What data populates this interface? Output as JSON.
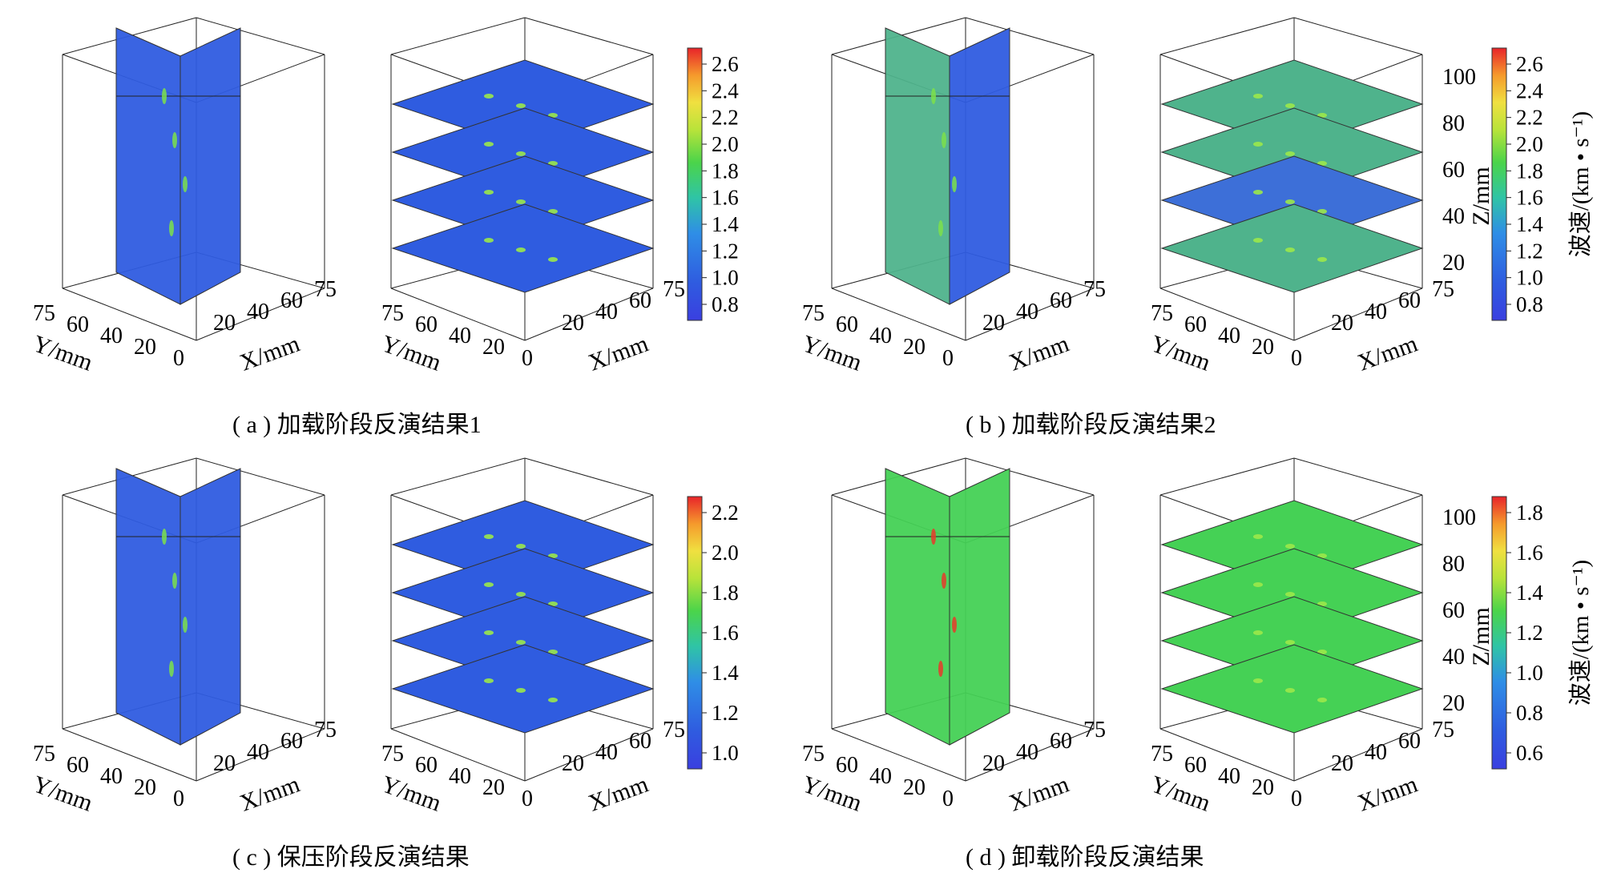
{
  "panels": [
    {
      "caption": "( a ) 加载阶段反演结果1",
      "colorbar": {
        "ticks": [
          "2.6",
          "2.4",
          "2.2",
          "2.0",
          "1.8",
          "1.6",
          "1.4",
          "1.2",
          "1.0",
          "0.8"
        ],
        "label": "",
        "bg": "#2f5ce0"
      },
      "left_axis": {
        "y_ticks": [
          "75",
          "60",
          "40",
          "20",
          "0"
        ],
        "y_label": "Y/mm",
        "x_ticks": [
          "20",
          "40",
          "60",
          "75"
        ],
        "x_label": "X/mm"
      },
      "right_axis": {
        "y_ticks": [
          "75",
          "60",
          "40",
          "20",
          "0"
        ],
        "y_label": "Y/mm",
        "x_ticks": [
          "20",
          "40",
          "60",
          "75"
        ],
        "x_label": "X/mm",
        "z_ticks": [],
        "z_label": ""
      },
      "plane_colors": {
        "slice": "#2f5ce0",
        "layers": [
          "#2f5ce0",
          "#2f5ce0",
          "#2f5ce0",
          "#2f5ce0"
        ]
      }
    },
    {
      "caption": "( b ) 加载阶段反演结果2",
      "colorbar": {
        "ticks": [
          "2.6",
          "2.4",
          "2.2",
          "2.0",
          "1.8",
          "1.6",
          "1.4",
          "1.2",
          "1.0",
          "0.8"
        ],
        "label": "波速/(km • s⁻¹)",
        "bg": "#2f5ce0"
      },
      "left_axis": {
        "y_ticks": [
          "75",
          "60",
          "40",
          "20",
          "0"
        ],
        "y_label": "Y/mm",
        "x_ticks": [
          "20",
          "40",
          "60",
          "75"
        ],
        "x_label": "X/mm"
      },
      "right_axis": {
        "y_ticks": [
          "75",
          "60",
          "40",
          "20",
          "0"
        ],
        "y_label": "Y/mm",
        "x_ticks": [
          "20",
          "40",
          "60",
          "75"
        ],
        "x_label": "X/mm",
        "z_ticks": [
          "100",
          "80",
          "60",
          "40",
          "20"
        ],
        "z_label": "Z/mm"
      },
      "plane_colors": {
        "slice": "#4fb38c",
        "slice2": "#2f5ce0",
        "layers": [
          "#4fb38c",
          "#4fb38c",
          "#3d6fd8",
          "#4fb38c"
        ]
      }
    },
    {
      "caption": "( c ) 保压阶段反演结果",
      "colorbar": {
        "ticks": [
          "2.2",
          "2.0",
          "1.8",
          "1.6",
          "1.4",
          "1.2",
          "1.0"
        ],
        "label": "",
        "bg": "#2f5ce0"
      },
      "left_axis": {
        "y_ticks": [
          "75",
          "60",
          "40",
          "20",
          "0"
        ],
        "y_label": "Y/mm",
        "x_ticks": [
          "20",
          "40",
          "60",
          "75"
        ],
        "x_label": "X/mm"
      },
      "right_axis": {
        "y_ticks": [
          "75",
          "60",
          "40",
          "20",
          "0"
        ],
        "y_label": "Y/mm",
        "x_ticks": [
          "20",
          "40",
          "60",
          "75"
        ],
        "x_label": "X/mm",
        "z_ticks": [],
        "z_label": ""
      },
      "plane_colors": {
        "slice": "#2f5ce0",
        "layers": [
          "#2f5ce0",
          "#2f5ce0",
          "#2f5ce0",
          "#2f5ce0"
        ]
      }
    },
    {
      "caption": "( d ) 卸载阶段反演结果",
      "colorbar": {
        "ticks": [
          "1.8",
          "1.6",
          "1.4",
          "1.2",
          "1.0",
          "0.8",
          "0.6"
        ],
        "label": "波速/(km • s⁻¹)",
        "bg": "#2f5ce0"
      },
      "left_axis": {
        "y_ticks": [
          "75",
          "60",
          "40",
          "20",
          "0"
        ],
        "y_label": "Y/mm",
        "x_ticks": [
          "20",
          "40",
          "60",
          "75"
        ],
        "x_label": "X/mm"
      },
      "right_axis": {
        "y_ticks": [
          "75",
          "60",
          "40",
          "20",
          "0"
        ],
        "y_label": "Y/mm",
        "x_ticks": [
          "20",
          "40",
          "60",
          "75"
        ],
        "x_label": "X/mm",
        "z_ticks": [
          "100",
          "80",
          "60",
          "40",
          "20"
        ],
        "z_label": "Z/mm"
      },
      "plane_colors": {
        "slice": "#45d155",
        "layers": [
          "#45d155",
          "#45d155",
          "#45d155",
          "#45d155"
        ]
      }
    }
  ]
}
